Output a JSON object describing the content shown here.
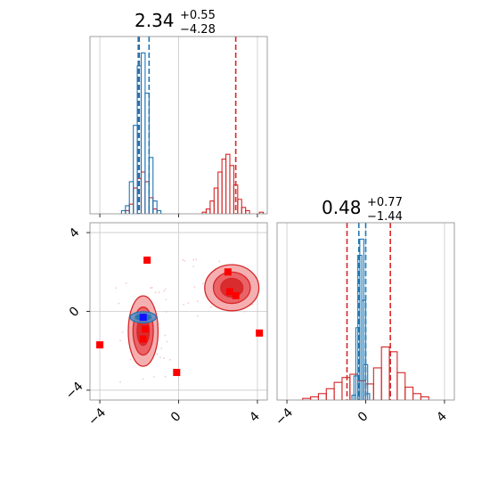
{
  "colors": {
    "red": "#d62728",
    "red_light": "#f4a6a8",
    "red_mid": "#e8565a",
    "blue": "#1f77b4",
    "blue_marker": "#1010ff",
    "square": "#ff0000",
    "grid": "#c8c8c8",
    "frame": "#888888"
  },
  "chart_data": [
    {
      "type": "histogram",
      "panel": "top-left",
      "title_main": "2.34",
      "title_plus": "+0.55",
      "title_minus": "−4.28",
      "xlim": [
        -4.5,
        4.5
      ],
      "grid": true,
      "vlines_red": [
        -2.0,
        2.9
      ],
      "vlines_blue": [
        -2.05,
        -1.5
      ],
      "red_hist": {
        "x": [
          -2.6,
          -2.4,
          -2.2,
          -2.0,
          -1.8,
          -1.6,
          -1.4,
          -1.2,
          1.3,
          1.5,
          1.7,
          1.9,
          2.1,
          2.3,
          2.5,
          2.7,
          2.9,
          3.1,
          3.3,
          3.5,
          4.2
        ],
        "y": [
          0.02,
          0.06,
          0.16,
          0.22,
          0.26,
          0.2,
          0.1,
          0.03,
          0.01,
          0.03,
          0.08,
          0.16,
          0.26,
          0.34,
          0.37,
          0.3,
          0.18,
          0.09,
          0.04,
          0.02,
          0.01
        ]
      },
      "blue_hist": {
        "x": [
          -2.8,
          -2.6,
          -2.4,
          -2.2,
          -2.0,
          -1.8,
          -1.6,
          -1.4,
          -1.2,
          -1.0
        ],
        "y": [
          0.02,
          0.05,
          0.2,
          0.55,
          0.92,
          1.0,
          0.75,
          0.35,
          0.08,
          0.02
        ]
      }
    },
    {
      "type": "contour",
      "panel": "bottom-left",
      "xlim": [
        -4.5,
        4.5
      ],
      "ylim": [
        -4.5,
        4.5
      ],
      "x_ticks": [
        "−4",
        "0",
        "4"
      ],
      "y_ticks": [
        "−4",
        "0",
        "4"
      ],
      "x_tick_values": [
        -4,
        0,
        4
      ],
      "y_tick_values": [
        -4,
        0,
        4
      ],
      "grid": true,
      "red_modes": [
        {
          "cx": -1.8,
          "cy": -1.0,
          "sx": 0.55,
          "sy": 1.3
        },
        {
          "cx": 2.7,
          "cy": 1.2,
          "sx": 1.0,
          "sy": 0.85
        }
      ],
      "blue_mode": {
        "cx": -1.8,
        "cy": -0.3,
        "sx": 0.55,
        "sy": 0.2
      },
      "blue_marker": [
        -1.8,
        -0.3
      ],
      "red_squares": [
        [
          -1.6,
          2.6
        ],
        [
          -4.0,
          -1.7
        ],
        [
          -0.1,
          -3.1
        ],
        [
          4.1,
          -1.1
        ],
        [
          2.5,
          2.0
        ],
        [
          2.6,
          1.0
        ],
        [
          2.9,
          0.8
        ],
        [
          -1.8,
          -1.4
        ],
        [
          -1.7,
          -0.9
        ]
      ]
    },
    {
      "type": "histogram",
      "panel": "bottom-right",
      "title_main": "0.48",
      "title_plus": "+0.77",
      "title_minus": "−1.44",
      "xlim": [
        -4.5,
        4.5
      ],
      "x_ticks": [
        "−4",
        "0",
        "4"
      ],
      "x_tick_values": [
        -4,
        0,
        4
      ],
      "grid": true,
      "vlines_red": [
        -0.95,
        1.25
      ],
      "vlines_blue": [
        -0.35,
        0.0
      ],
      "red_hist": {
        "x": [
          -3.0,
          -2.6,
          -2.2,
          -1.8,
          -1.4,
          -1.0,
          -0.6,
          -0.2,
          0.2,
          0.6,
          1.0,
          1.4,
          1.8,
          2.2,
          2.6,
          3.0
        ],
        "y": [
          0.01,
          0.02,
          0.04,
          0.07,
          0.11,
          0.14,
          0.16,
          0.12,
          0.1,
          0.2,
          0.33,
          0.3,
          0.17,
          0.08,
          0.04,
          0.02
        ]
      },
      "blue_hist": {
        "x": [
          -0.6,
          -0.5,
          -0.4,
          -0.3,
          -0.2,
          -0.1,
          0.0,
          0.1
        ],
        "y": [
          0.03,
          0.15,
          0.45,
          0.9,
          1.0,
          0.62,
          0.22,
          0.04
        ]
      }
    }
  ]
}
